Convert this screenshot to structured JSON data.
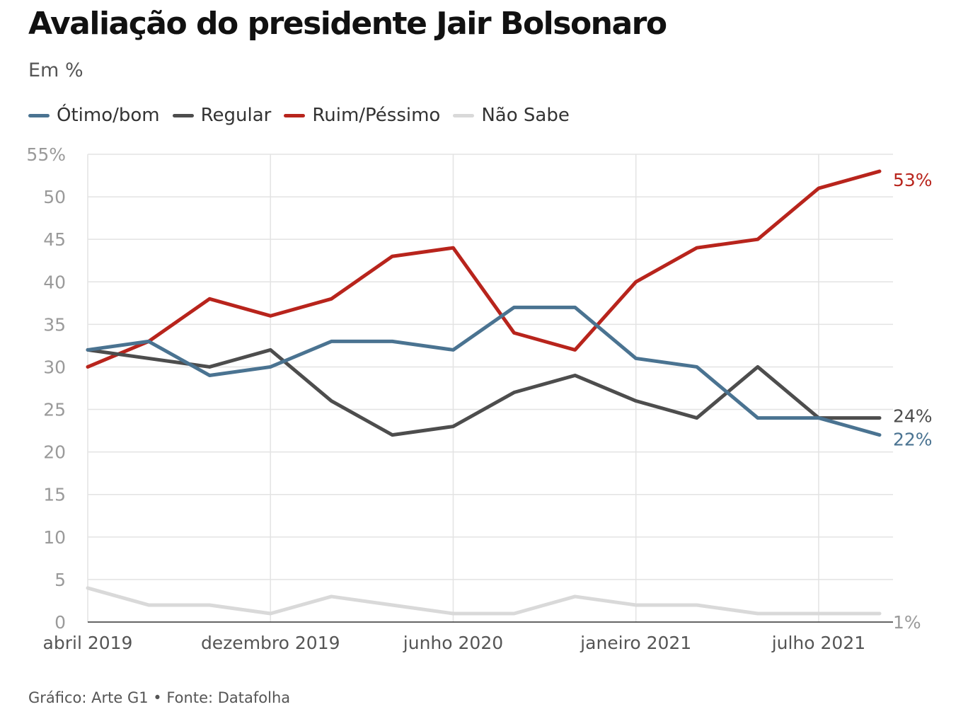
{
  "title": "Avaliação do presidente Jair Bolsonaro",
  "subtitle": "Em %",
  "source": "Gráfico: Arte G1 • Fonte: Datafolha",
  "chart_data": {
    "type": "line",
    "ylim": [
      0,
      55
    ],
    "yticks": [
      0,
      5,
      10,
      15,
      20,
      25,
      30,
      35,
      40,
      45,
      50,
      55
    ],
    "ytick_labels": [
      "0",
      "5",
      "10",
      "15",
      "20",
      "25",
      "30",
      "35",
      "40",
      "45",
      "50",
      "55%"
    ],
    "xtick_labels": [
      {
        "index": 0,
        "label": "abril 2019"
      },
      {
        "index": 3,
        "label": "dezembro 2019"
      },
      {
        "index": 6,
        "label": "junho 2020"
      },
      {
        "index": 9,
        "label": "janeiro 2021"
      },
      {
        "index": 12,
        "label": "julho 2021"
      }
    ],
    "grid": true,
    "legend_placement": "top-left",
    "series": [
      {
        "name": "Ótimo/bom",
        "color": "#4a7391",
        "values": [
          32,
          33,
          29,
          30,
          33,
          33,
          32,
          37,
          37,
          31,
          30,
          24,
          24,
          22
        ],
        "end_label": "22%"
      },
      {
        "name": "Regular",
        "color": "#4d4d4d",
        "values": [
          32,
          31,
          30,
          32,
          26,
          22,
          23,
          27,
          29,
          26,
          24,
          30,
          24,
          24
        ],
        "end_label": "24%"
      },
      {
        "name": "Ruim/Péssimo",
        "color": "#b8241c",
        "values": [
          30,
          33,
          38,
          36,
          38,
          43,
          44,
          34,
          32,
          40,
          44,
          45,
          51,
          53
        ],
        "end_label": "53%"
      },
      {
        "name": "Não Sabe",
        "color": "#d9d9d9",
        "values": [
          4,
          2,
          2,
          1,
          3,
          2,
          1,
          1,
          3,
          2,
          2,
          1,
          1,
          1
        ],
        "end_label": "1%"
      }
    ]
  }
}
